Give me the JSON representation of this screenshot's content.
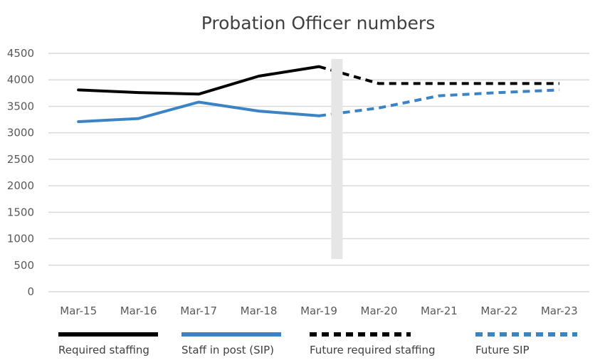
{
  "chart_data": {
    "type": "line",
    "title": "Probation Officer numbers",
    "xlabel": "",
    "ylabel": "",
    "categories": [
      "Mar-15",
      "Mar-16",
      "Mar-17",
      "Mar-18",
      "Mar-19",
      "Mar-20",
      "Mar-21",
      "Mar-22",
      "Mar-23"
    ],
    "y_ticks": [
      "0",
      "500",
      "1000",
      "1500",
      "2000",
      "2500",
      "3000",
      "3500",
      "4000",
      "4500"
    ],
    "ylim": [
      0,
      4500
    ],
    "grid": true,
    "legend_position": "bottom",
    "series": [
      {
        "name": "Required staffing",
        "color": "#000000",
        "style": "solid",
        "values": [
          3810,
          3760,
          3730,
          4070,
          4250,
          null,
          null,
          null,
          null
        ]
      },
      {
        "name": "Staff in post (SIP)",
        "color": "#3a84c5",
        "style": "solid",
        "values": [
          3210,
          3270,
          3580,
          3410,
          3320,
          null,
          null,
          null,
          null
        ]
      },
      {
        "name": "Future required staffing",
        "color": "#000000",
        "style": "dashed",
        "values": [
          null,
          null,
          null,
          null,
          4250,
          3930,
          3930,
          3930,
          3930
        ]
      },
      {
        "name": "Future SIP",
        "color": "#3a84c5",
        "style": "dashed",
        "values": [
          null,
          null,
          null,
          null,
          3320,
          3470,
          3700,
          3760,
          3810
        ]
      }
    ],
    "divider": {
      "after_category": "Mar-19",
      "color": "#e6e6e6"
    }
  }
}
